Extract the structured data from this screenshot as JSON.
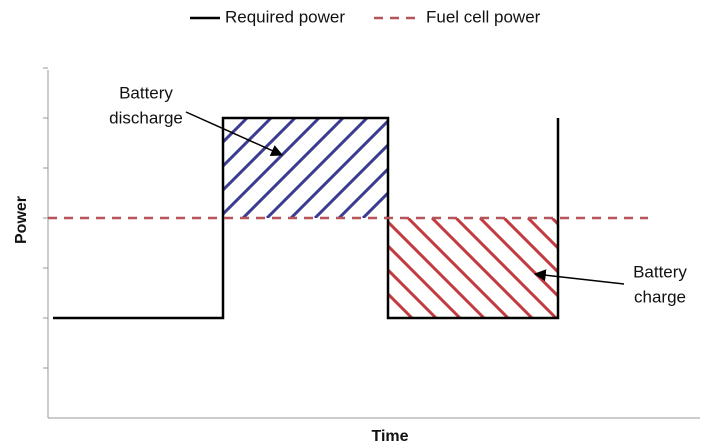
{
  "chart_data": {
    "type": "line",
    "xlabel": "Time",
    "ylabel": "Power",
    "xlim": [
      0,
      13
    ],
    "ylim": [
      0,
      7
    ],
    "yticks": [
      1,
      2,
      3,
      4,
      5,
      6,
      7
    ],
    "legend": "top",
    "series": [
      {
        "name": "Required power",
        "color": "#000000",
        "style": "solid",
        "x": [
          0.1,
          3.5,
          3.5,
          6.8,
          6.8,
          10.2,
          10.2
        ],
        "values": [
          2,
          2,
          6,
          6,
          2,
          2,
          6
        ]
      },
      {
        "name": "Fuel cell power",
        "color": "#b5555a",
        "style": "dashed",
        "x": [
          0,
          12
        ],
        "values": [
          4,
          4
        ]
      }
    ],
    "annotations": [
      {
        "lines": [
          "Battery",
          "discharge"
        ],
        "color": "#3c3c8e"
      },
      {
        "lines": [
          "Battery",
          "charge"
        ],
        "color": "#c33a40"
      }
    ]
  }
}
